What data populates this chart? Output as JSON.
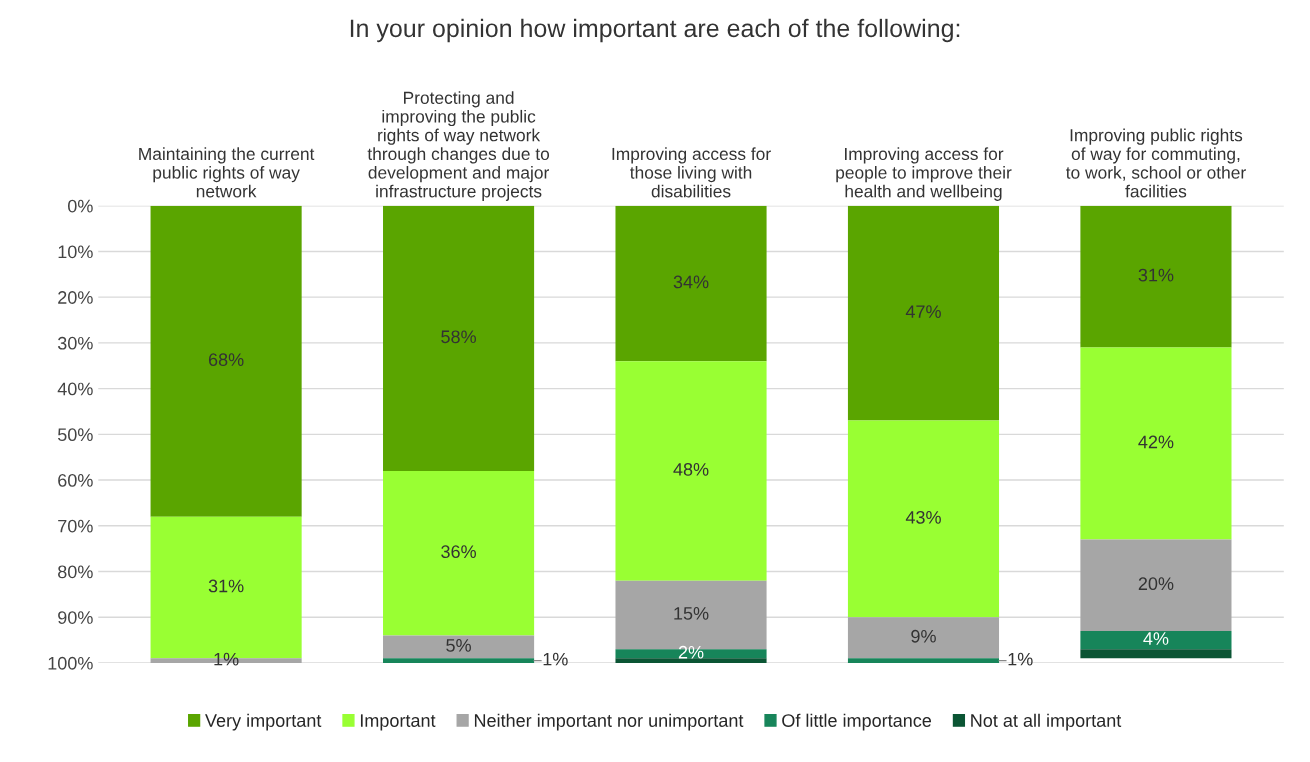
{
  "chart_data": {
    "type": "bar",
    "stacked": true,
    "title": "In your opinion how important are each of the following:",
    "categories": [
      "Maintaining the current\npublic rights of way\nnetwork",
      "Protecting and\nimproving the public\nrights of way network\nthrough changes due to\ndevelopment and major\ninfrastructure projects",
      "Improving access for\nthose living with\ndisabilities",
      "Improving access for\npeople to improve their\nhealth and wellbeing",
      "Improving public rights\nof way for commuting,\nto work, school or other\nfacilities"
    ],
    "series": [
      {
        "name": "Very important",
        "color": "#5aa500",
        "values": [
          68,
          58,
          34,
          47,
          31
        ],
        "value_labels": [
          "68%",
          "58%",
          "34%",
          "47%",
          "31%"
        ]
      },
      {
        "name": "Important",
        "color": "#99ff33",
        "values": [
          31,
          36,
          48,
          43,
          42
        ],
        "value_labels": [
          "31%",
          "36%",
          "48%",
          "43%",
          "42%"
        ]
      },
      {
        "name": "Neither important nor unimportant",
        "color": "#a6a6a6",
        "values": [
          1,
          5,
          15,
          9,
          20
        ],
        "value_labels": [
          "1%",
          "5%",
          "15%",
          "9%",
          "20%"
        ]
      },
      {
        "name": "Of little importance",
        "color": "#17855a",
        "values": [
          0,
          1,
          2,
          1,
          4
        ],
        "value_labels": [
          null,
          "1%",
          "2%",
          "1%",
          "4%"
        ]
      },
      {
        "name": "Not at all important",
        "color": "#0b5534",
        "values": [
          0,
          0,
          1,
          0,
          2
        ],
        "value_labels": [
          null,
          null,
          null,
          null,
          null
        ]
      }
    ],
    "ylim": [
      100,
      0
    ],
    "yticks": [
      {
        "value": 0,
        "label": "0%"
      },
      {
        "value": 10,
        "label": "10%"
      },
      {
        "value": 20,
        "label": "20%"
      },
      {
        "value": 30,
        "label": "30%"
      },
      {
        "value": 40,
        "label": "40%"
      },
      {
        "value": 50,
        "label": "50%"
      },
      {
        "value": 60,
        "label": "60%"
      },
      {
        "value": 70,
        "label": "70%"
      },
      {
        "value": 80,
        "label": "80%"
      },
      {
        "value": 90,
        "label": "90%"
      },
      {
        "value": 100,
        "label": "100%"
      }
    ],
    "grid": "y",
    "legend": "bottom"
  }
}
